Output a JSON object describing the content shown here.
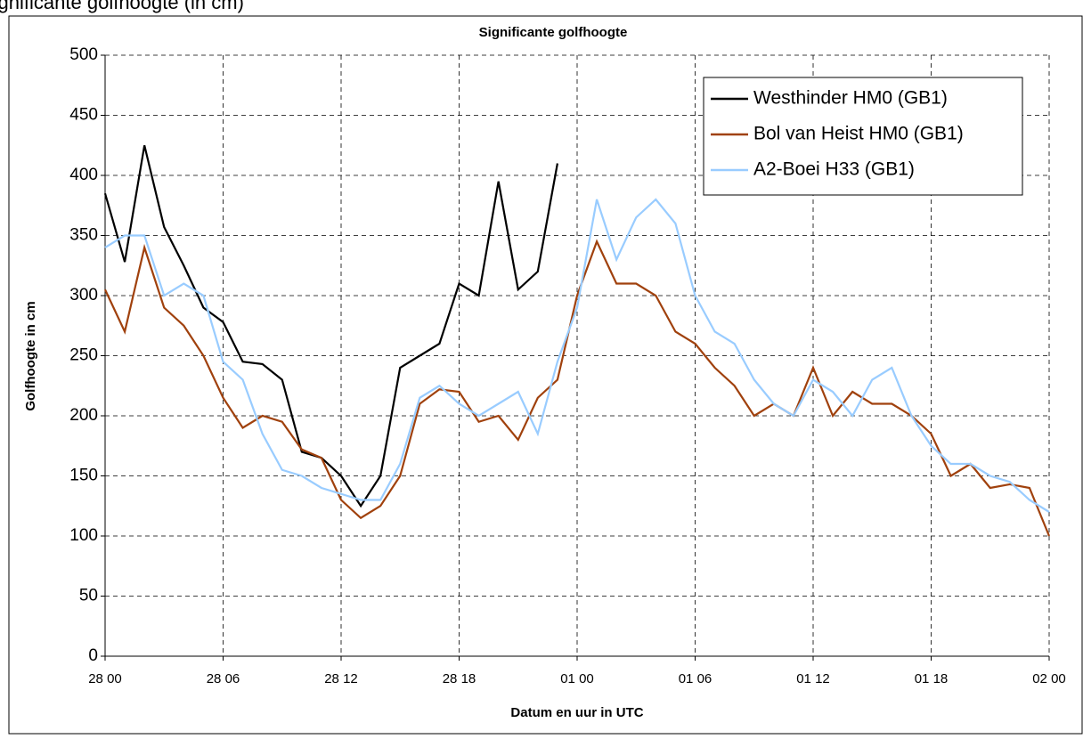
{
  "page_heading": "Significante golfhoogte (in cm)",
  "chart_data": {
    "type": "line",
    "title": "Significante golfhoogte",
    "xlabel": "Datum en uur in UTC",
    "ylabel": "Golfhoogte in cm",
    "x": [
      0,
      1,
      2,
      3,
      4,
      5,
      6,
      7,
      8,
      9,
      10,
      11,
      12,
      13,
      14,
      15,
      16,
      17,
      18,
      19,
      20,
      21,
      22,
      23,
      24,
      25,
      26,
      27,
      28,
      29,
      30,
      31,
      32,
      33,
      34,
      35,
      36,
      37,
      38,
      39,
      40,
      41,
      42,
      43,
      44,
      45,
      46,
      47,
      48
    ],
    "xlim": [
      0,
      48
    ],
    "xticks": [
      {
        "value": 0,
        "label": "28 00"
      },
      {
        "value": 6,
        "label": "28 06"
      },
      {
        "value": 12,
        "label": "28 12"
      },
      {
        "value": 18,
        "label": "28 18"
      },
      {
        "value": 24,
        "label": "01 00"
      },
      {
        "value": 30,
        "label": "01 06"
      },
      {
        "value": 36,
        "label": "01 12"
      },
      {
        "value": 42,
        "label": "01 18"
      },
      {
        "value": 48,
        "label": "02 00"
      }
    ],
    "ylim": [
      0,
      500
    ],
    "yticks": [
      0,
      50,
      100,
      150,
      200,
      250,
      300,
      350,
      400,
      450,
      500
    ],
    "grid": true,
    "legend": "upper right",
    "series": [
      {
        "name": "Westhinder HM0 (GB1)",
        "color": "#000000",
        "values": [
          385,
          328,
          425,
          357,
          325,
          290,
          278,
          245,
          243,
          230,
          170,
          165,
          150,
          125,
          150,
          240,
          250,
          260,
          310,
          300,
          395,
          305,
          320,
          410,
          null,
          null,
          null,
          null,
          null,
          null,
          null,
          null,
          null,
          null,
          null,
          null,
          null,
          null,
          null,
          null,
          null,
          null,
          null,
          null,
          null,
          null,
          null,
          null,
          null
        ]
      },
      {
        "name": "Bol van Heist HM0 (GB1)",
        "color": "#a0410d",
        "values": [
          305,
          270,
          340,
          290,
          275,
          250,
          215,
          190,
          200,
          195,
          172,
          165,
          130,
          115,
          125,
          150,
          210,
          222,
          220,
          195,
          200,
          180,
          215,
          230,
          300,
          345,
          310,
          310,
          300,
          270,
          260,
          240,
          225,
          200,
          210,
          200,
          240,
          200,
          220,
          210,
          210,
          200,
          185,
          150,
          160,
          140,
          143,
          140,
          100
        ]
      },
      {
        "name": "A2-Boei H33 (GB1)",
        "color": "#99ccff",
        "values": [
          340,
          350,
          350,
          300,
          310,
          300,
          245,
          230,
          185,
          155,
          150,
          140,
          135,
          130,
          130,
          160,
          215,
          225,
          210,
          200,
          210,
          220,
          185,
          245,
          290,
          380,
          330,
          365,
          380,
          360,
          300,
          270,
          260,
          230,
          210,
          200,
          230,
          220,
          200,
          230,
          240,
          200,
          175,
          160,
          160,
          150,
          145,
          130,
          120
        ]
      }
    ]
  }
}
